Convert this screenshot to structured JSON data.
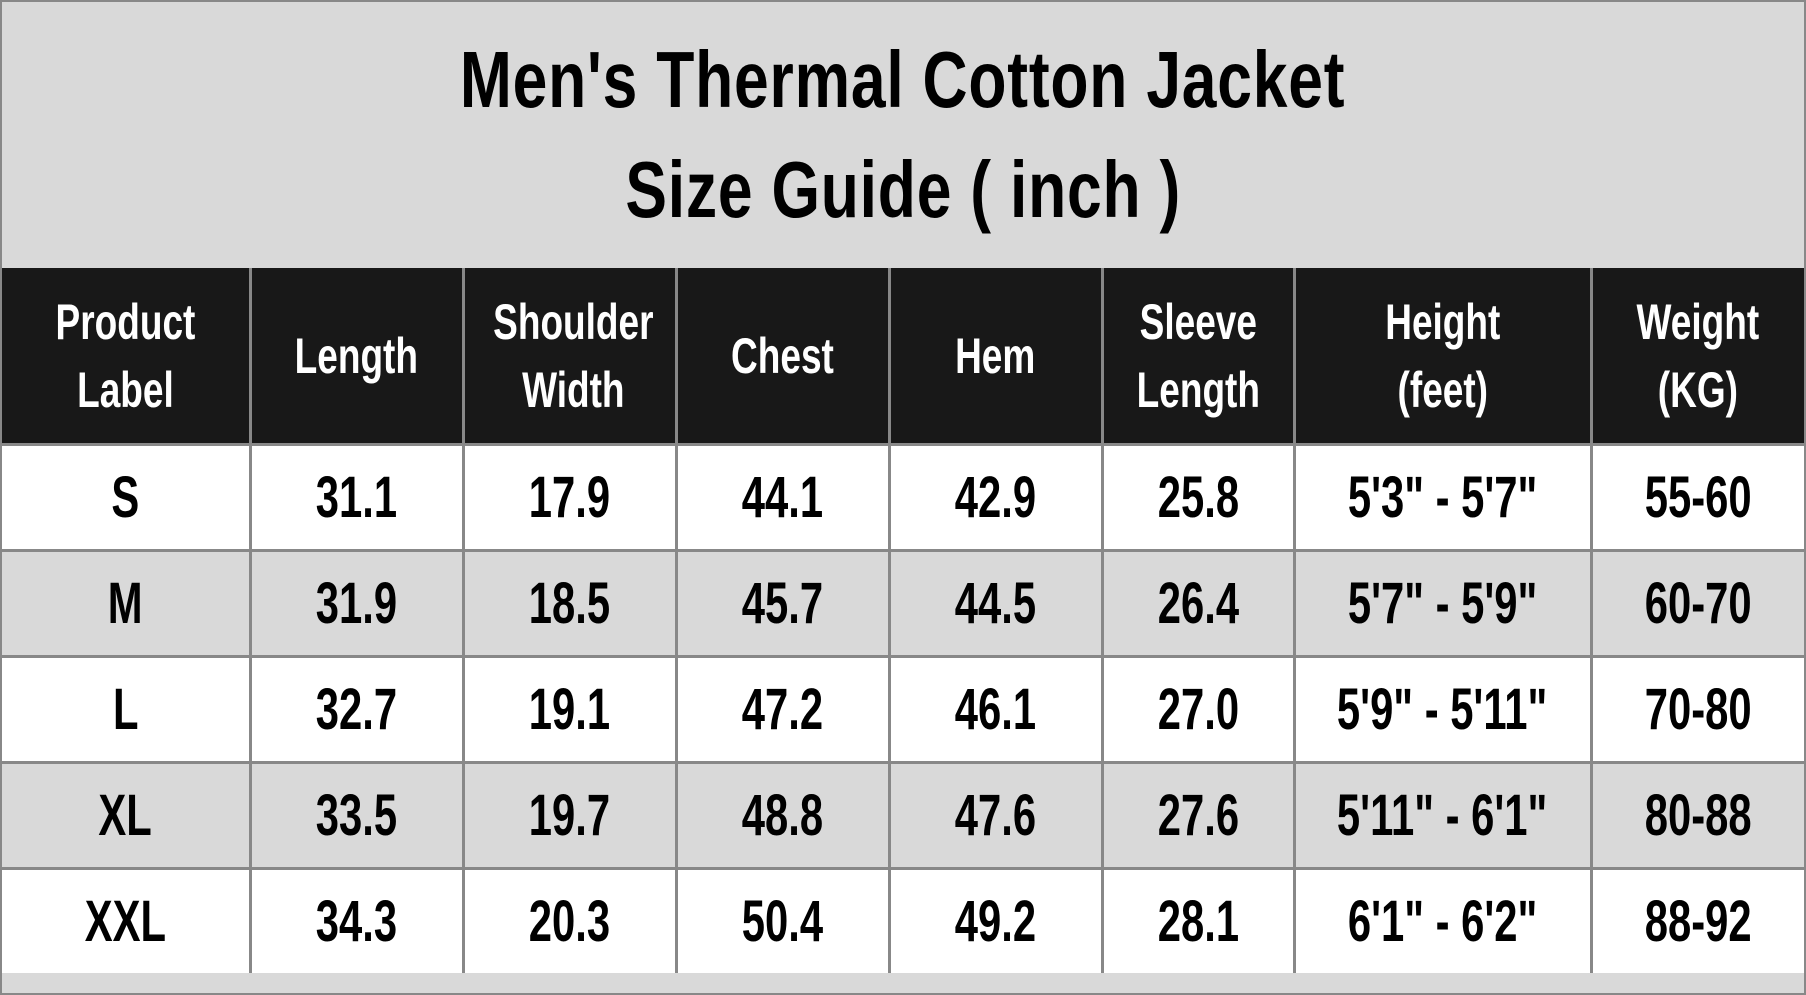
{
  "title": {
    "line1": "Men's Thermal Cotton Jacket",
    "line2": "Size Guide ( inch )"
  },
  "headers": [
    {
      "line1": "Product",
      "line2": "Label"
    },
    {
      "line1": "Length",
      "line2": ""
    },
    {
      "line1": "Shoulder",
      "line2": "Width"
    },
    {
      "line1": "Chest",
      "line2": ""
    },
    {
      "line1": "Hem",
      "line2": ""
    },
    {
      "line1": "Sleeve",
      "line2": "Length"
    },
    {
      "line1": "Height",
      "line2": "(feet)"
    },
    {
      "line1": "Weight",
      "line2": "(KG)"
    }
  ],
  "rows": [
    [
      "S",
      "31.1",
      "17.9",
      "44.1",
      "42.9",
      "25.8",
      "5'3\" - 5'7\"",
      "55-60"
    ],
    [
      "M",
      "31.9",
      "18.5",
      "45.7",
      "44.5",
      "26.4",
      "5'7\" - 5'9\"",
      "60-70"
    ],
    [
      "L",
      "32.7",
      "19.1",
      "47.2",
      "46.1",
      "27.0",
      "5'9\" - 5'11\"",
      "70-80"
    ],
    [
      "XL",
      "33.5",
      "19.7",
      "48.8",
      "47.6",
      "27.6",
      "5'11\" - 6'1\"",
      "80-88"
    ],
    [
      "XXL",
      "34.3",
      "20.3",
      "50.4",
      "49.2",
      "28.1",
      "6'1\" - 6'2\"",
      "88-92"
    ]
  ],
  "colors": {
    "header_bg": "#181818",
    "header_text": "#ffffff",
    "stripe": "#d9d9d9",
    "border": "#888888"
  }
}
